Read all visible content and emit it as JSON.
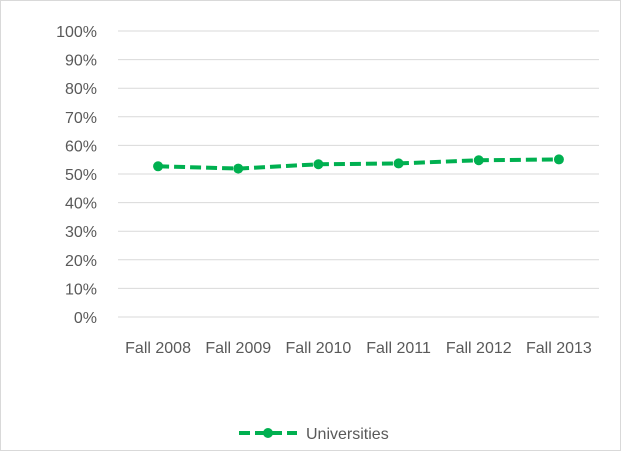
{
  "chart_data": {
    "type": "line",
    "title": "",
    "xlabel": "",
    "ylabel": "",
    "categories": [
      "Fall 2008",
      "Fall 2009",
      "Fall 2010",
      "Fall 2011",
      "Fall 2012",
      "Fall 2013"
    ],
    "series": [
      {
        "name": "Universities",
        "values": [
          0.527,
          0.519,
          0.534,
          0.537,
          0.548,
          0.551
        ],
        "color": "#00b050",
        "line_style": "dashed",
        "marker": "circle"
      }
    ],
    "ylim": [
      0,
      1
    ],
    "y_ticks": [
      "0%",
      "10%",
      "20%",
      "30%",
      "40%",
      "50%",
      "60%",
      "70%",
      "80%",
      "90%",
      "100%"
    ],
    "grid": "horizontal",
    "legend_position": "bottom"
  }
}
